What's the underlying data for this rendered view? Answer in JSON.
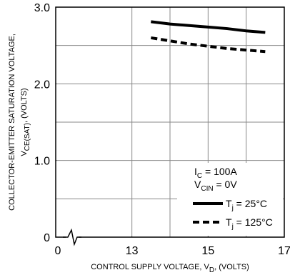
{
  "chart_data": {
    "type": "line",
    "ylabel": [
      "COLLECTOR-EMITTER SATURATION VOLTAGE,",
      "V",
      "CE(SAT)",
      ", (VOLTS)"
    ],
    "xlabel": [
      "CONTROL SUPPLY VOLTAGE, V",
      "D",
      ", (VOLTS)"
    ],
    "xlim": [
      11,
      17
    ],
    "xticks": [
      13,
      15,
      17
    ],
    "xgrid": [
      13,
      14,
      15,
      16
    ],
    "xorigin": 0,
    "ylim": [
      0,
      3
    ],
    "yticks": [
      0,
      {
        "value": 1,
        "label": "1.0"
      },
      {
        "value": 2,
        "label": "2.0"
      },
      {
        "value": 3,
        "label": "3.0"
      }
    ],
    "ygrid": [
      0.5,
      1,
      1.5,
      2,
      2.5
    ],
    "grid": true,
    "annotations": [
      [
        "I",
        "C",
        " = 100A"
      ],
      [
        "V",
        "CIN",
        " = 0V"
      ]
    ],
    "x": [
      13.5,
      14,
      14.5,
      15,
      15.5,
      16,
      16.5
    ],
    "series": [
      {
        "name": [
          "T",
          "j",
          " = 25°C"
        ],
        "color": "#000000",
        "dash": false,
        "values": [
          2.81,
          2.78,
          2.76,
          2.74,
          2.72,
          2.69,
          2.67
        ]
      },
      {
        "name": [
          "T",
          "j",
          " = 125°C"
        ],
        "color": "#000000",
        "dash": true,
        "values": [
          2.6,
          2.56,
          2.52,
          2.49,
          2.46,
          2.44,
          2.42
        ]
      }
    ]
  }
}
